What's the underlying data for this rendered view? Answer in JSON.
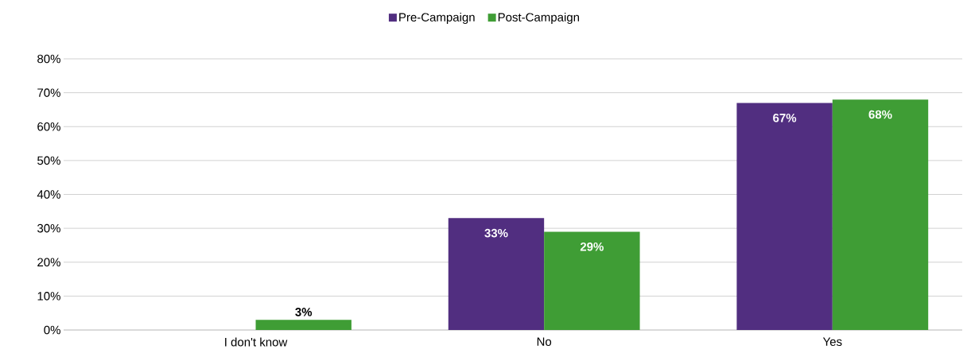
{
  "chart_data": {
    "type": "bar",
    "categories": [
      "I don't know",
      "No",
      "Yes"
    ],
    "series": [
      {
        "name": "Pre-Campaign",
        "color": "#512e80",
        "values": [
          null,
          33,
          67
        ],
        "value_labels": [
          null,
          "33%",
          "67%"
        ]
      },
      {
        "name": "Post-Campaign",
        "color": "#3f9d35",
        "values": [
          3,
          29,
          68
        ],
        "value_labels": [
          "3%",
          "29%",
          "68%"
        ]
      }
    ],
    "ylim": [
      0,
      80
    ],
    "yticks": [
      {
        "value": 0,
        "label": "0%"
      },
      {
        "value": 10,
        "label": "10%"
      },
      {
        "value": 20,
        "label": "20%"
      },
      {
        "value": 30,
        "label": "30%"
      },
      {
        "value": 40,
        "label": "40%"
      },
      {
        "value": 50,
        "label": "50%"
      },
      {
        "value": 60,
        "label": "60%"
      },
      {
        "value": 70,
        "label": "70%"
      },
      {
        "value": 80,
        "label": "80%"
      }
    ],
    "grid": "y",
    "legend": "top"
  }
}
